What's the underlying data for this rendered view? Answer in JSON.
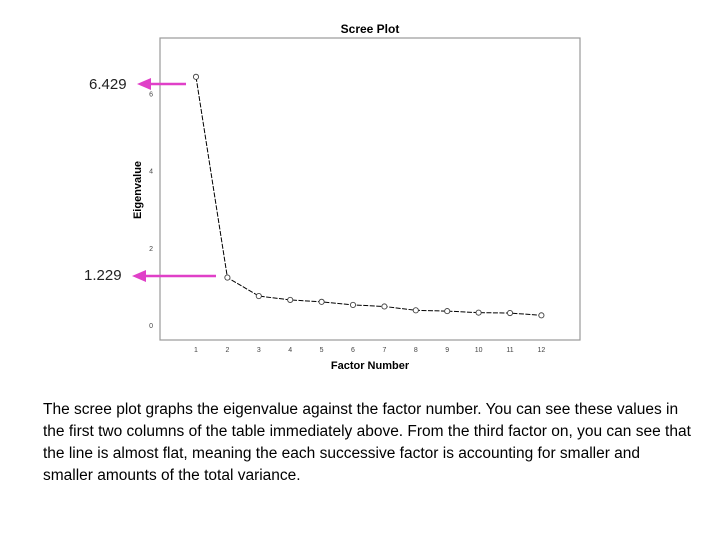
{
  "chart_data": {
    "type": "line",
    "title": "Scree Plot",
    "xlabel": "Factor Number",
    "ylabel": "Eigenvalue",
    "x": [
      1,
      2,
      3,
      4,
      5,
      6,
      7,
      8,
      9,
      10,
      11,
      12
    ],
    "values": [
      6.429,
      1.229,
      0.75,
      0.65,
      0.6,
      0.52,
      0.48,
      0.38,
      0.36,
      0.32,
      0.31,
      0.25
    ],
    "xticks": [
      "1",
      "2",
      "3",
      "4",
      "5",
      "6",
      "7",
      "8",
      "9",
      "10",
      "11",
      "12"
    ],
    "yticks": [
      "0",
      "2",
      "4",
      "6"
    ],
    "ylim": [
      0,
      6.5
    ],
    "grid": false,
    "marker": "open-circle",
    "line_color": "#000000",
    "plot_background": "#ffffff"
  },
  "annotations": [
    {
      "label": "6.429",
      "value": 6.429,
      "color": "#e040c8"
    },
    {
      "label": "1.229",
      "value": 1.229,
      "color": "#e040c8"
    }
  ],
  "description": "The scree plot graphs the eigenvalue against the factor number.  You can see these values in the first two columns of the table immediately above.  From the third factor on, you can see that the line is almost flat, meaning the each successive factor is accounting for smaller and smaller amounts of the total variance."
}
